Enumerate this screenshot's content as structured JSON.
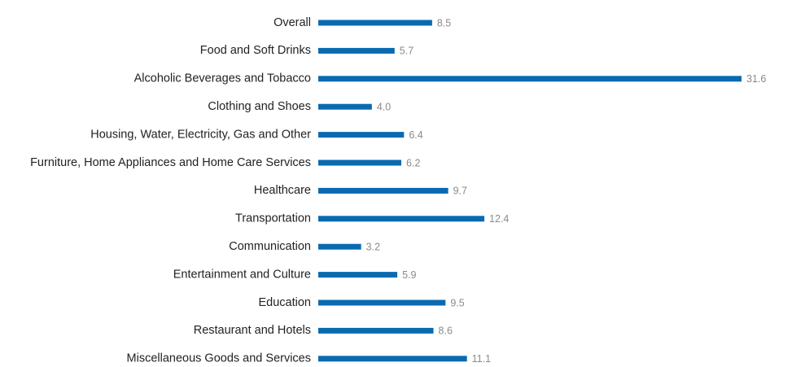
{
  "chart_data": {
    "type": "bar",
    "orientation": "horizontal",
    "color": "#0a6ab0",
    "categories": [
      "Overall",
      "Food and Soft Drinks",
      "Alcoholic Beverages and Tobacco",
      "Clothing and Shoes",
      "Housing, Water, Electricity, Gas and Other",
      "Furniture, Home Appliances and Home Care Services",
      "Healthcare",
      "Transportation",
      "Communication",
      "Entertainment and Culture",
      "Education",
      "Restaurant and Hotels",
      "Miscellaneous Goods and Services"
    ],
    "values": [
      8.5,
      5.7,
      31.6,
      4.0,
      6.4,
      6.2,
      9.7,
      12.4,
      3.2,
      5.9,
      9.5,
      8.6,
      11.1
    ],
    "value_labels": [
      "8.5",
      "5.7",
      "31.6",
      "4.0",
      "6.4",
      "6.2",
      "9.7",
      "12.4",
      "3.2",
      "5.9",
      "9.5",
      "8.6",
      "11.1"
    ]
  }
}
